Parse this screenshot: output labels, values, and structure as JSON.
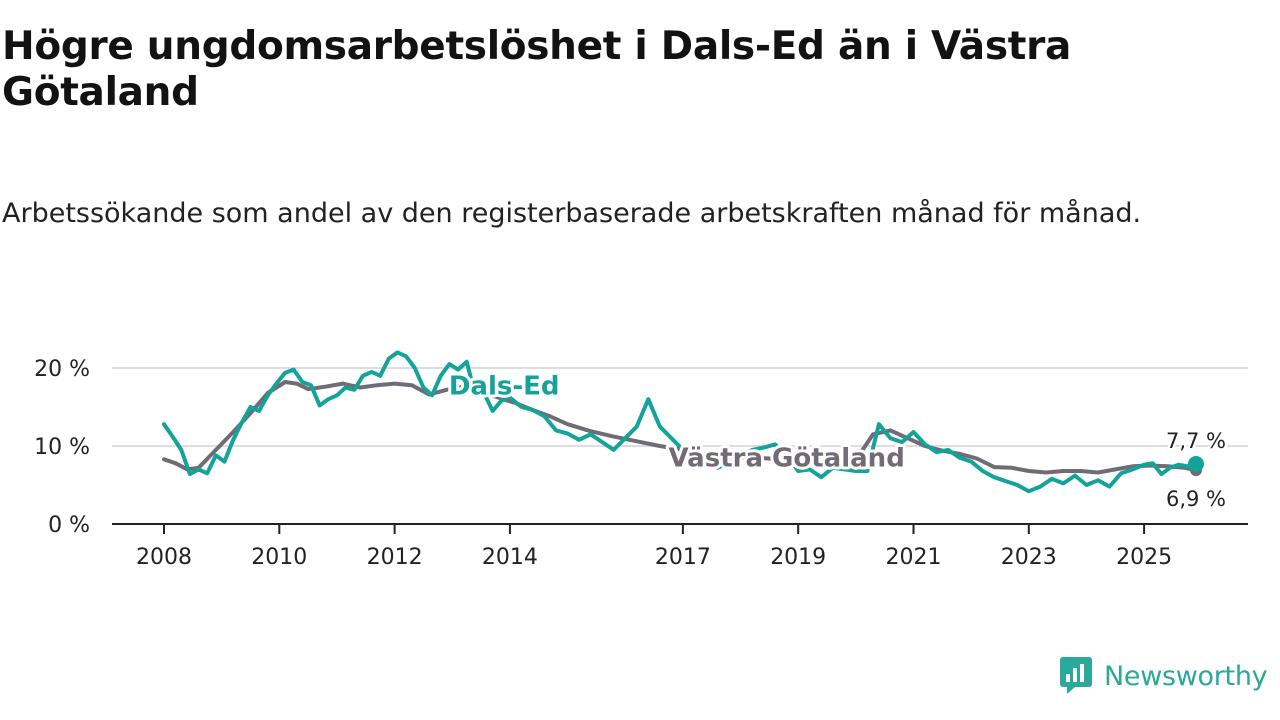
{
  "title": "Högre ungdomsarbetslöshet i Dals-Ed än i Västra Götaland",
  "subtitle": "Arbetssökande som andel av den registerbaserade arbetskraften månad för månad.",
  "brand": "Newsworthy",
  "colors": {
    "dals_ed": "#13a39a",
    "vastra_gotaland": "#706b74",
    "grid": "#dddddd",
    "axis": "#222222"
  },
  "chart_data": {
    "type": "line",
    "title": "Högre ungdomsarbetslöshet i Dals-Ed än i Västra Götaland",
    "xlabel": "",
    "ylabel": "",
    "x_range": [
      2008.0,
      2025.9
    ],
    "ylim": [
      0,
      22
    ],
    "y_ticks": [
      0,
      10,
      20
    ],
    "y_tick_labels": [
      "0 %",
      "10 %",
      "20 %"
    ],
    "x_ticks": [
      2008,
      2010,
      2012,
      2014,
      2017,
      2019,
      2021,
      2023,
      2025
    ],
    "x_tick_labels": [
      "2008",
      "2010",
      "2012",
      "2014",
      "2017",
      "2019",
      "2021",
      "2023",
      "2025"
    ],
    "grid": true,
    "series": [
      {
        "name": "Västra Götaland",
        "label": "Västra Götaland",
        "end_label": "6,9 %",
        "x": [
          2008.0,
          2008.2,
          2008.4,
          2008.6,
          2008.9,
          2009.2,
          2009.5,
          2009.8,
          2010.1,
          2010.3,
          2010.5,
          2010.8,
          2011.1,
          2011.4,
          2011.7,
          2012.0,
          2012.3,
          2012.6,
          2012.9,
          2013.2,
          2013.5,
          2013.8,
          2014.1,
          2014.4,
          2014.7,
          2015.0,
          2015.4,
          2015.8,
          2016.2,
          2016.6,
          2017.0,
          2017.3,
          2017.6,
          2017.9,
          2018.2,
          2018.5,
          2018.8,
          2019.1,
          2019.4,
          2019.7,
          2020.0,
          2020.3,
          2020.6,
          2020.9,
          2021.2,
          2021.5,
          2021.8,
          2022.1,
          2022.4,
          2022.7,
          2023.0,
          2023.3,
          2023.6,
          2023.9,
          2024.2,
          2024.5,
          2024.8,
          2025.1,
          2025.4,
          2025.7,
          2025.9
        ],
        "values": [
          8.3,
          7.8,
          7.0,
          7.2,
          9.5,
          11.8,
          14.2,
          16.8,
          18.2,
          18.0,
          17.3,
          17.6,
          18.0,
          17.5,
          17.8,
          18.0,
          17.8,
          16.6,
          17.2,
          17.6,
          17.0,
          16.2,
          15.5,
          14.6,
          13.8,
          12.8,
          11.9,
          11.2,
          10.6,
          10.0,
          9.5,
          8.9,
          8.6,
          8.6,
          8.5,
          8.4,
          8.1,
          8.0,
          7.9,
          8.0,
          8.2,
          11.5,
          12.0,
          11.0,
          10.0,
          9.4,
          9.0,
          8.4,
          7.3,
          7.2,
          6.8,
          6.6,
          6.8,
          6.8,
          6.6,
          7.0,
          7.4,
          7.5,
          7.4,
          7.2,
          6.9
        ]
      },
      {
        "name": "Dals-Ed",
        "label": "Dals-Ed",
        "end_label": "7,7 %",
        "x": [
          2008.0,
          2008.15,
          2008.3,
          2008.45,
          2008.6,
          2008.75,
          2008.9,
          2009.05,
          2009.2,
          2009.35,
          2009.5,
          2009.65,
          2009.8,
          2009.95,
          2010.1,
          2010.25,
          2010.4,
          2010.55,
          2010.7,
          2010.85,
          2011.0,
          2011.15,
          2011.3,
          2011.45,
          2011.6,
          2011.75,
          2011.9,
          2012.05,
          2012.2,
          2012.35,
          2012.5,
          2012.65,
          2012.8,
          2012.95,
          2013.1,
          2013.25,
          2013.4,
          2013.55,
          2013.7,
          2013.85,
          2014.0,
          2014.2,
          2014.4,
          2014.6,
          2014.8,
          2015.0,
          2015.2,
          2015.4,
          2015.6,
          2015.8,
          2016.0,
          2016.2,
          2016.4,
          2016.6,
          2016.8,
          2017.0,
          2017.2,
          2017.4,
          2017.6,
          2017.8,
          2018.0,
          2018.2,
          2018.4,
          2018.6,
          2018.8,
          2019.0,
          2019.2,
          2019.4,
          2019.6,
          2019.8,
          2020.0,
          2020.2,
          2020.4,
          2020.6,
          2020.8,
          2021.0,
          2021.2,
          2021.4,
          2021.6,
          2021.8,
          2022.0,
          2022.2,
          2022.4,
          2022.6,
          2022.8,
          2023.0,
          2023.2,
          2023.4,
          2023.6,
          2023.8,
          2024.0,
          2024.2,
          2024.4,
          2024.6,
          2024.8,
          2025.0,
          2025.15,
          2025.3,
          2025.45,
          2025.6,
          2025.75,
          2025.9
        ],
        "values": [
          12.8,
          11.2,
          9.5,
          6.4,
          7.0,
          6.5,
          8.8,
          8.0,
          10.8,
          13.0,
          15.0,
          14.5,
          16.5,
          18.0,
          19.4,
          19.8,
          18.2,
          17.8,
          15.2,
          16.0,
          16.5,
          17.5,
          17.2,
          19.0,
          19.5,
          19.0,
          21.2,
          22.0,
          21.5,
          20.0,
          17.5,
          16.5,
          19.0,
          20.5,
          19.8,
          20.8,
          16.5,
          16.8,
          14.5,
          15.8,
          16.2,
          15.0,
          14.6,
          13.8,
          12.0,
          11.6,
          10.8,
          11.5,
          10.5,
          9.5,
          11.0,
          12.5,
          16.0,
          12.5,
          11.0,
          9.5,
          9.8,
          8.5,
          7.2,
          7.8,
          8.5,
          9.5,
          9.8,
          10.2,
          8.8,
          6.8,
          7.0,
          6.0,
          7.2,
          7.0,
          6.8,
          6.8,
          12.8,
          11.0,
          10.5,
          11.8,
          10.2,
          9.2,
          9.5,
          8.5,
          8.0,
          6.8,
          6.0,
          5.5,
          5.0,
          4.2,
          4.8,
          5.8,
          5.2,
          6.2,
          5.0,
          5.6,
          4.8,
          6.5,
          7.0,
          7.6,
          7.8,
          6.4,
          7.2,
          7.6,
          7.4,
          7.7
        ]
      }
    ]
  }
}
